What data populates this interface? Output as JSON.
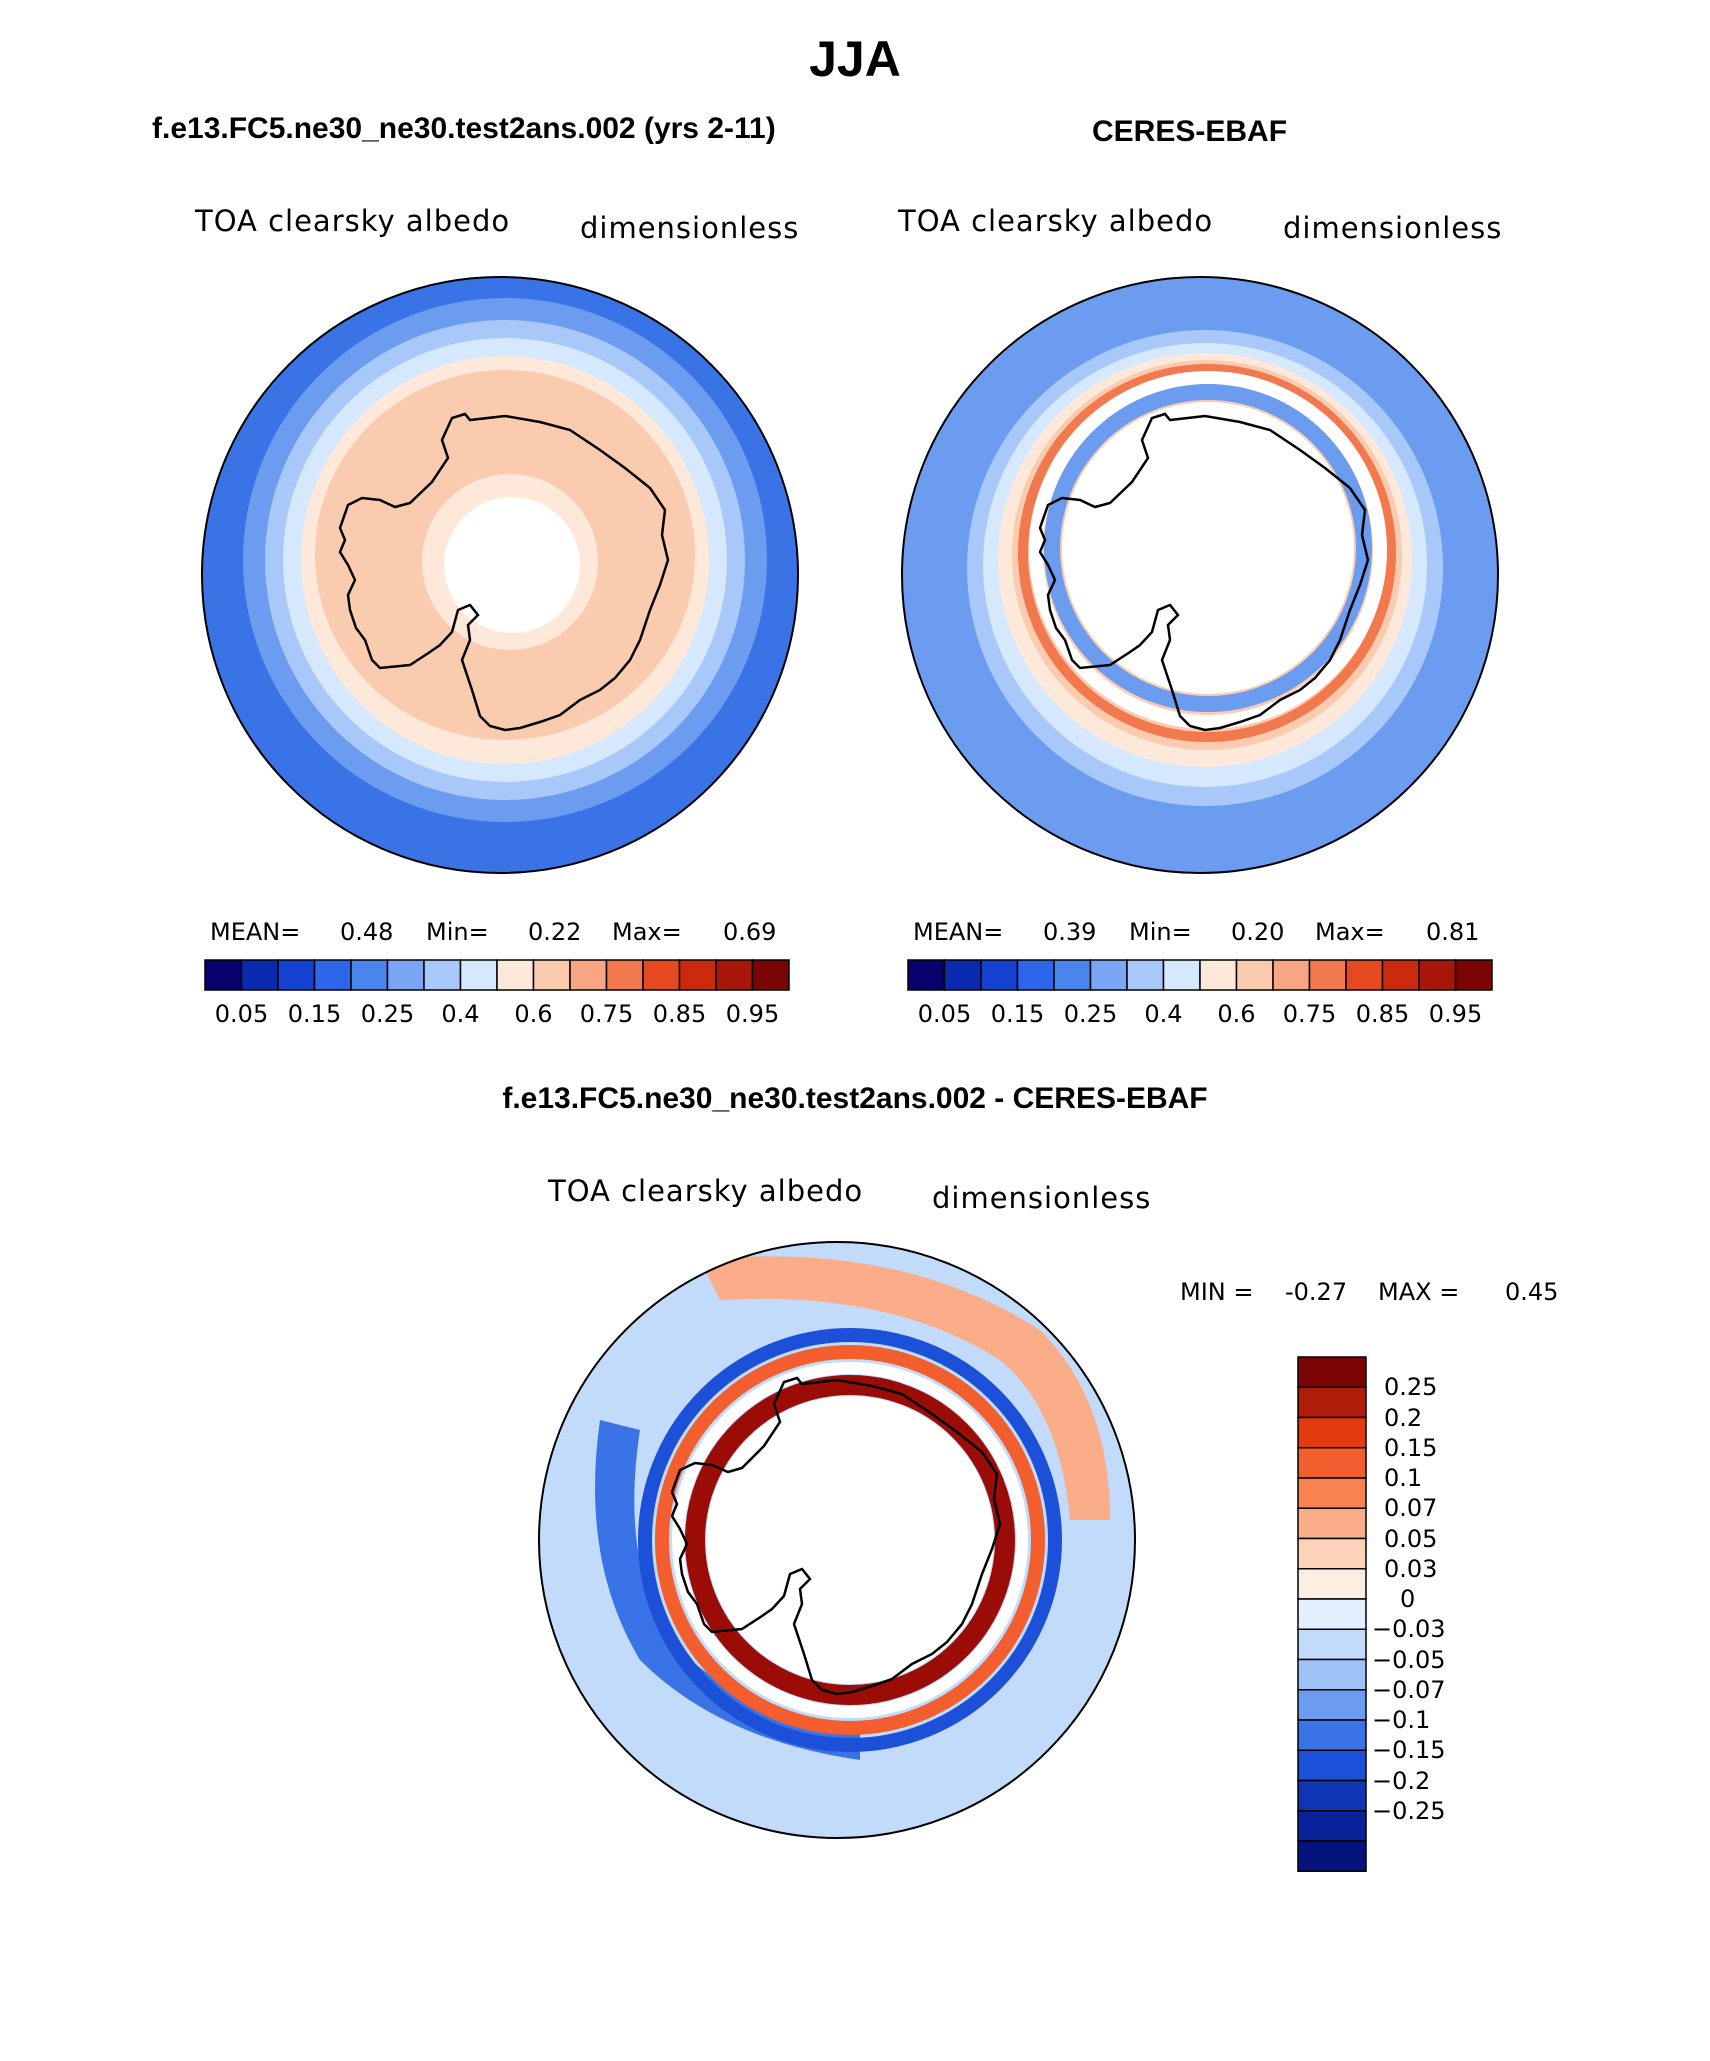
{
  "title": "JJA",
  "panels": [
    {
      "heading": "f.e13.FC5.ne30_ne30.test2ans.002 (yrs 2-11)",
      "variable": "TOA clearsky albedo",
      "units": "dimensionless",
      "stats": {
        "mean_label": "MEAN=",
        "mean": "0.48",
        "min_label": "Min=",
        "min": "0.22",
        "max_label": "Max=",
        "max": "0.69"
      }
    },
    {
      "heading": "CERES-EBAF",
      "variable": "TOA clearsky albedo",
      "units": "dimensionless",
      "stats": {
        "mean_label": "MEAN=",
        "mean": "0.39",
        "min_label": "Min=",
        "min": "0.20",
        "max_label": "Max=",
        "max": "0.81"
      }
    },
    {
      "heading": "f.e13.FC5.ne30_ne30.test2ans.002 - CERES-EBAF",
      "variable": "TOA clearsky albedo",
      "units": "dimensionless",
      "stats": {
        "min_label": "MIN =",
        "min": "-0.27",
        "max_label": "MAX =",
        "max": "0.45"
      }
    }
  ],
  "colorbars": {
    "absolute": {
      "colors": [
        "#08006b",
        "#0a2ab0",
        "#1541d0",
        "#2d66e8",
        "#4a85ee",
        "#7aa6f5",
        "#a8c8fa",
        "#d6e8fd",
        "#fde8da",
        "#fbcbb0",
        "#f7a582",
        "#f2784e",
        "#e5491f",
        "#cc2a0e",
        "#a8160a",
        "#7b0505"
      ],
      "labels": [
        "0.05",
        "0.15",
        "0.25",
        "0.4",
        "0.6",
        "0.75",
        "0.85",
        "0.95"
      ]
    },
    "difference": {
      "colors": [
        "#7b0505",
        "#b01d0a",
        "#e23b10",
        "#f25e2e",
        "#f7824f",
        "#fbac88",
        "#fdd2b8",
        "#fdeee2",
        "#e3f0fd",
        "#c2dbfb",
        "#9ec3f7",
        "#6c9cf0",
        "#3a73e6",
        "#1c50d8",
        "#0f36b2",
        "#08229a",
        "#05137d"
      ],
      "labels": [
        "0.25",
        "0.2",
        "0.15",
        "0.1",
        "0.07",
        "0.05",
        "0.03",
        "0",
        "−0.03",
        "−0.05",
        "−0.07",
        "−0.1",
        "−0.15",
        "−0.2",
        "−0.25"
      ]
    }
  },
  "map_colors": {
    "ocean_deep": "#3a73e6",
    "ocean_mid": "#6c9cf0",
    "ocean_light": "#a8c8fa",
    "ocean_pale": "#d6e8fd",
    "ice_peach": "#fbcbb0",
    "ice_pale": "#fde8da",
    "warm": "#f2784e",
    "dark_red": "#9c0c06"
  }
}
